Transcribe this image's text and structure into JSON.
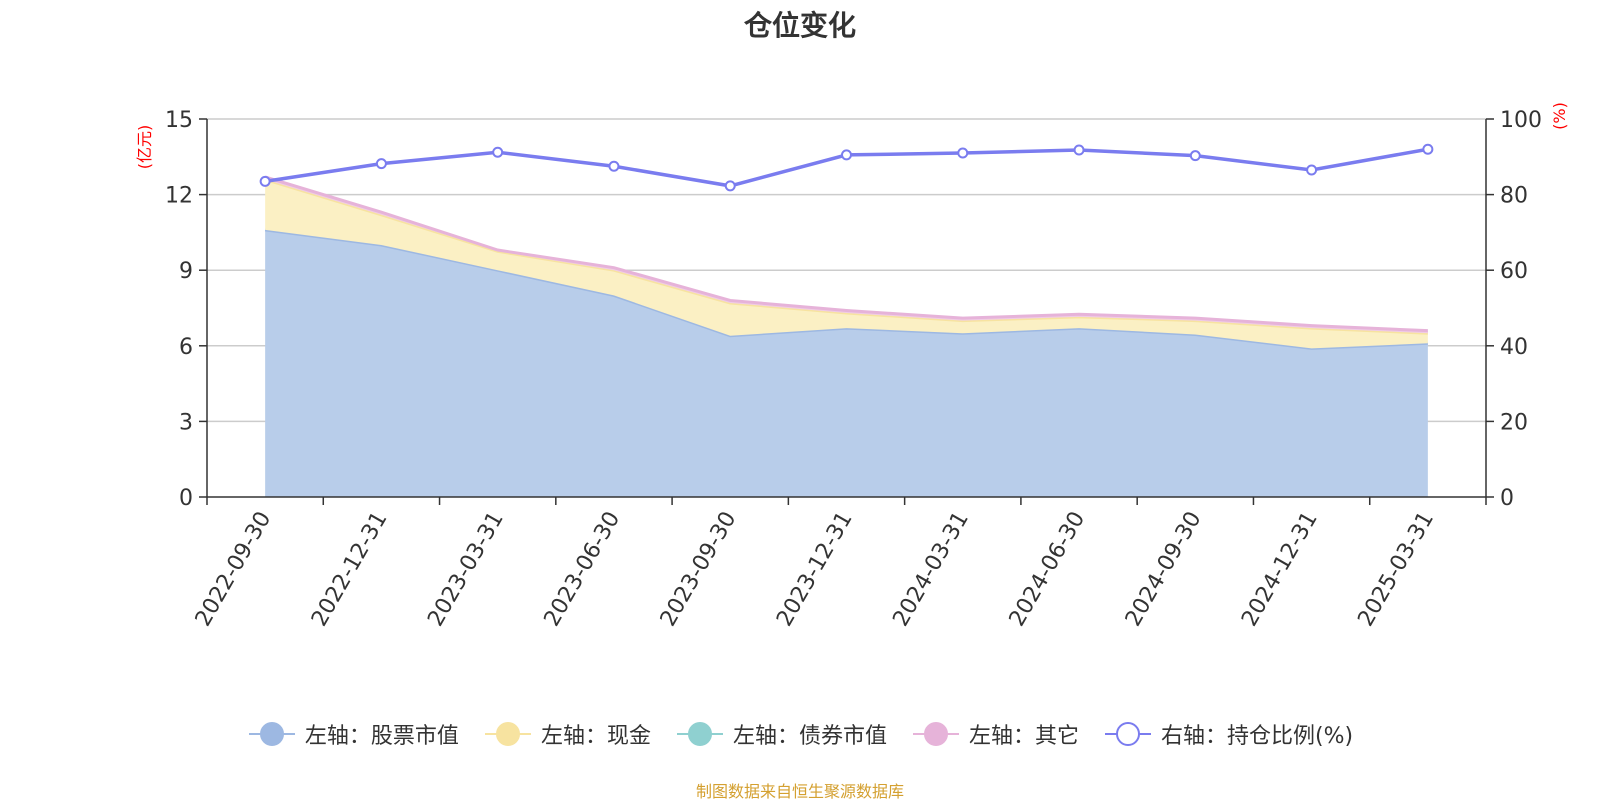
{
  "chart_data": {
    "type": "area",
    "title": "仓位变化",
    "left_axis_unit": "(亿元)",
    "right_axis_unit": "(%)",
    "x": [
      "2022-09-30",
      "2022-12-31",
      "2023-03-31",
      "2023-06-30",
      "2023-09-30",
      "2023-12-31",
      "2024-03-31",
      "2024-06-30",
      "2024-09-30",
      "2024-12-31",
      "2025-03-31"
    ],
    "ylim_left": [
      0,
      15
    ],
    "yticks_left": [
      0,
      3,
      6,
      9,
      12,
      15
    ],
    "ylim_right": [
      0,
      100
    ],
    "yticks_right": [
      0,
      20,
      40,
      60,
      80,
      100
    ],
    "grid": true,
    "legend_position": "bottom",
    "stacked": true,
    "series": [
      {
        "name": "左轴：股票市值",
        "axis": "left",
        "color": "#9db8e2",
        "fill": "#b8cdea",
        "values": [
          10.6,
          10.0,
          9.0,
          8.0,
          6.4,
          6.7,
          6.5,
          6.7,
          6.45,
          5.9,
          6.1
        ]
      },
      {
        "name": "左轴：现金",
        "axis": "left",
        "color": "#f7e3a0",
        "fill": "#fbf0c4",
        "values": [
          2.0,
          1.2,
          0.75,
          1.0,
          1.3,
          0.6,
          0.5,
          0.45,
          0.55,
          0.8,
          0.4
        ]
      },
      {
        "name": "左轴：债券市值",
        "axis": "left",
        "color": "#8fd0d0",
        "fill": "#b5e0e0",
        "values": [
          0,
          0,
          0,
          0,
          0,
          0,
          0,
          0,
          0,
          0,
          0
        ]
      },
      {
        "name": "左轴：其它",
        "axis": "left",
        "color": "#e6b3d9",
        "fill": "#f0cce6",
        "values": [
          0.1,
          0.1,
          0.05,
          0.1,
          0.1,
          0.1,
          0.1,
          0.1,
          0.1,
          0.1,
          0.1
        ]
      },
      {
        "name": "右轴：持仓比例(%)",
        "axis": "right",
        "color": "#7a7cef",
        "type": "line",
        "values": [
          83.5,
          88.2,
          91.2,
          87.5,
          82.3,
          90.5,
          91.0,
          91.8,
          90.3,
          86.5,
          92.0
        ]
      }
    ]
  },
  "source_note": "制图数据来自恒生聚源数据库",
  "colors": {
    "axis": "#333333",
    "grid": "#cccccc",
    "unit_label": "#ff0000",
    "source": "#d4a030"
  }
}
